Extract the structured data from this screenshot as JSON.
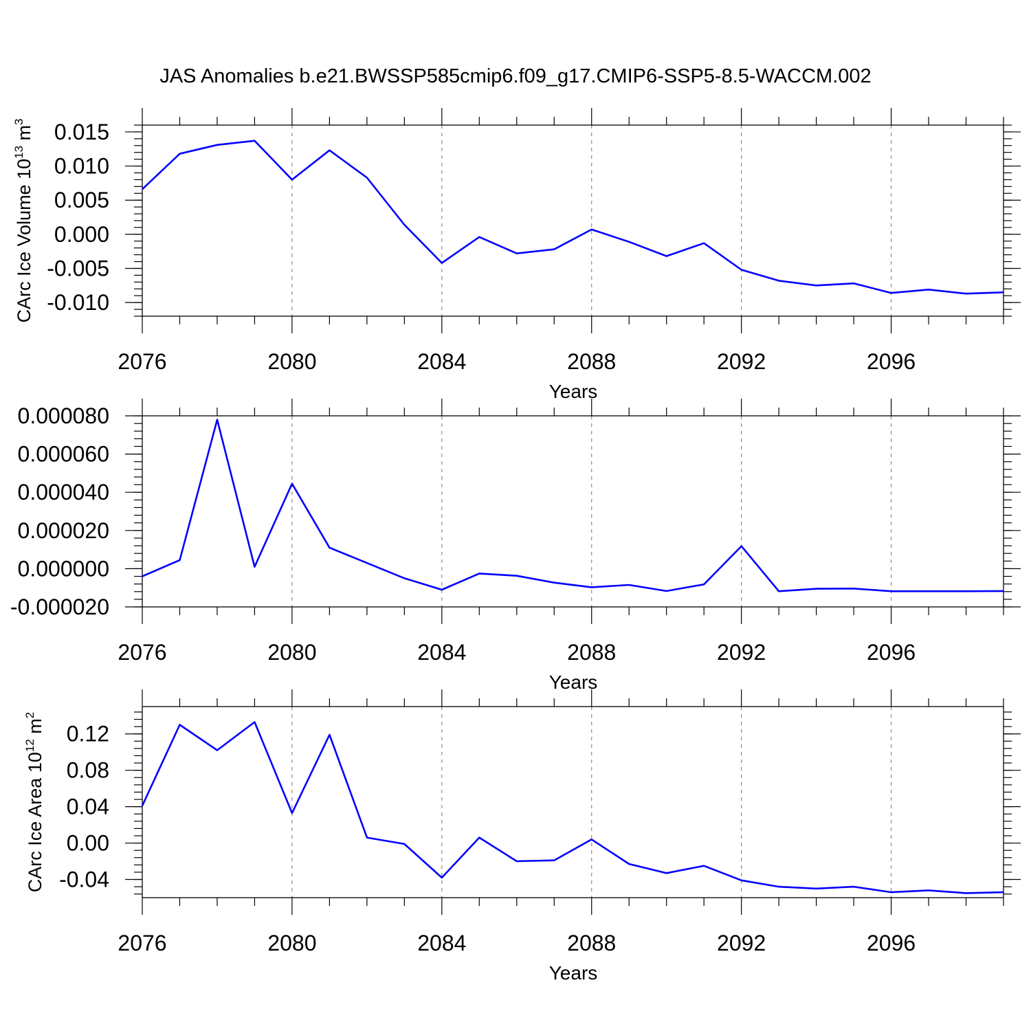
{
  "title": "JAS Anomalies b.e21.BWSSP585cmip6.f09_g17.CMIP6-SSP5-8.5-WACCM.002",
  "colors": {
    "line": "#0000ff",
    "grid": "#888888",
    "axis": "#000000"
  },
  "chart_data": [
    {
      "type": "line",
      "xlabel": "Years",
      "ylabel": {
        "text": "CArc Ice Volume 10",
        "sup": "13",
        "unit": " m",
        "unit_sup": "3"
      },
      "x_ticks": [
        "2076",
        "2080",
        "2084",
        "2088",
        "2092",
        "2096"
      ],
      "y_ticks": [
        "0.015",
        "0.010",
        "0.005",
        "0.000",
        "-0.005",
        "-0.010"
      ],
      "xlim": [
        2076,
        2099
      ],
      "ylim": [
        -0.012,
        0.016
      ],
      "grid": "dashed vertical at major x ticks",
      "x": [
        2076,
        2077,
        2078,
        2079,
        2080,
        2081,
        2082,
        2083,
        2084,
        2085,
        2086,
        2087,
        2088,
        2089,
        2090,
        2091,
        2092,
        2093,
        2094,
        2095,
        2096,
        2097,
        2098,
        2099
      ],
      "series": [
        {
          "values": [
            0.0066,
            0.0118,
            0.0131,
            0.0137,
            0.008,
            0.0123,
            0.0083,
            0.0014,
            -0.0042,
            -0.0004,
            -0.0028,
            -0.0022,
            0.0007,
            -0.0011,
            -0.0032,
            -0.0013,
            -0.0052,
            -0.0068,
            -0.0075,
            -0.0072,
            -0.0086,
            -0.0081,
            -0.0087,
            -0.0085
          ]
        }
      ]
    },
    {
      "type": "line",
      "xlabel": "Years",
      "x_ticks": [
        "2076",
        "2080",
        "2084",
        "2088",
        "2092",
        "2096"
      ],
      "y_ticks": [
        "0.000080",
        "0.000060",
        "0.000040",
        "0.000020",
        "0.000000",
        "-0.000020"
      ],
      "xlim": [
        2076,
        2099
      ],
      "ylim": [
        -2e-05,
        8e-05
      ],
      "grid": "dashed vertical at major x ticks",
      "x": [
        2076,
        2077,
        2078,
        2079,
        2080,
        2081,
        2082,
        2083,
        2084,
        2085,
        2086,
        2087,
        2088,
        2089,
        2090,
        2091,
        2092,
        2093,
        2094,
        2095,
        2096,
        2097,
        2098,
        2099
      ],
      "series": [
        {
          "values": [
            -4e-06,
            4.5e-06,
            7.8e-05,
            1e-06,
            4.45e-05,
            1.1e-05,
            3e-06,
            -5e-06,
            -1.1e-05,
            -2.5e-06,
            -3.7e-06,
            -7.3e-06,
            -9.7e-06,
            -8.5e-06,
            -1.17e-05,
            -8.2e-06,
            1.18e-05,
            -1.18e-05,
            -1.05e-05,
            -1.04e-05,
            -1.18e-05,
            -1.18e-05,
            -1.18e-05,
            -1.17e-05
          ]
        }
      ]
    },
    {
      "type": "line",
      "xlabel": "Years",
      "ylabel": {
        "text": "CArc Ice Area 10",
        "sup": "12",
        "unit": " m",
        "unit_sup": "2"
      },
      "x_ticks": [
        "2076",
        "2080",
        "2084",
        "2088",
        "2092",
        "2096"
      ],
      "y_ticks": [
        "0.12",
        "0.08",
        "0.04",
        "0.00",
        "-0.04"
      ],
      "xlim": [
        2076,
        2099
      ],
      "ylim": [
        -0.06,
        0.15
      ],
      "grid": "dashed vertical at major x ticks",
      "x": [
        2076,
        2077,
        2078,
        2079,
        2080,
        2081,
        2082,
        2083,
        2084,
        2085,
        2086,
        2087,
        2088,
        2089,
        2090,
        2091,
        2092,
        2093,
        2094,
        2095,
        2096,
        2097,
        2098,
        2099
      ],
      "series": [
        {
          "values": [
            0.041,
            0.13,
            0.102,
            0.133,
            0.033,
            0.119,
            0.006,
            -0.001,
            -0.038,
            0.006,
            -0.02,
            -0.019,
            0.004,
            -0.023,
            -0.033,
            -0.025,
            -0.041,
            -0.048,
            -0.05,
            -0.048,
            -0.054,
            -0.052,
            -0.055,
            -0.054
          ]
        }
      ]
    }
  ]
}
